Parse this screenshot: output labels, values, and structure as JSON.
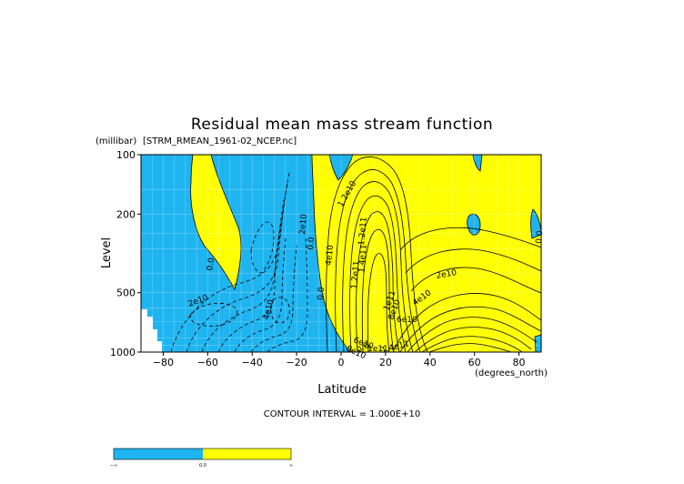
{
  "chart_data": {
    "type": "heatmap",
    "variant": "filled-contour",
    "title": "Residual mean mass stream function",
    "dataset": "[STRM_RMEAN_1961-02_NCEP.nc]",
    "xlabel": "Latitude",
    "xunits": "(degrees_north)",
    "ylabel": "Level",
    "yunits": "(millibar)",
    "xlim": [
      -90,
      90
    ],
    "ylim": [
      1000,
      100
    ],
    "yscale": "log",
    "x_ticks": [
      -80,
      -60,
      -40,
      -20,
      0,
      20,
      40,
      60,
      80
    ],
    "x_tick_labels": [
      "−80",
      "−60",
      "−40",
      "−20",
      "0",
      "20",
      "40",
      "60",
      "80"
    ],
    "y_ticks": [
      100,
      200,
      500,
      1000
    ],
    "y_tick_labels": [
      "100",
      "200",
      "500",
      "1000"
    ],
    "contour_interval_text": "CONTOUR INTERVAL = 1.000E+10",
    "contour_interval": 10000000000,
    "contour_labels": [
      "0.0",
      "0.0",
      "0.0",
      "0.0",
      "0.0",
      "2e10",
      "2e10",
      "2e10",
      "4e10",
      "4e10",
      "4e10",
      "6e10",
      "6e10",
      "8e10",
      "8e10",
      "1e11",
      "1e11",
      "1.2e11",
      "1.2e11",
      "1.4e11",
      "1.4e11",
      "1.2e10"
    ],
    "fill_colors": {
      "negative": "#1eb4f0",
      "positive": "#ffff00"
    },
    "colorbar": {
      "labels": [
        "−∞",
        "0.0",
        "∞"
      ],
      "colors": [
        "#1eb4f0",
        "#ffff00"
      ]
    }
  }
}
